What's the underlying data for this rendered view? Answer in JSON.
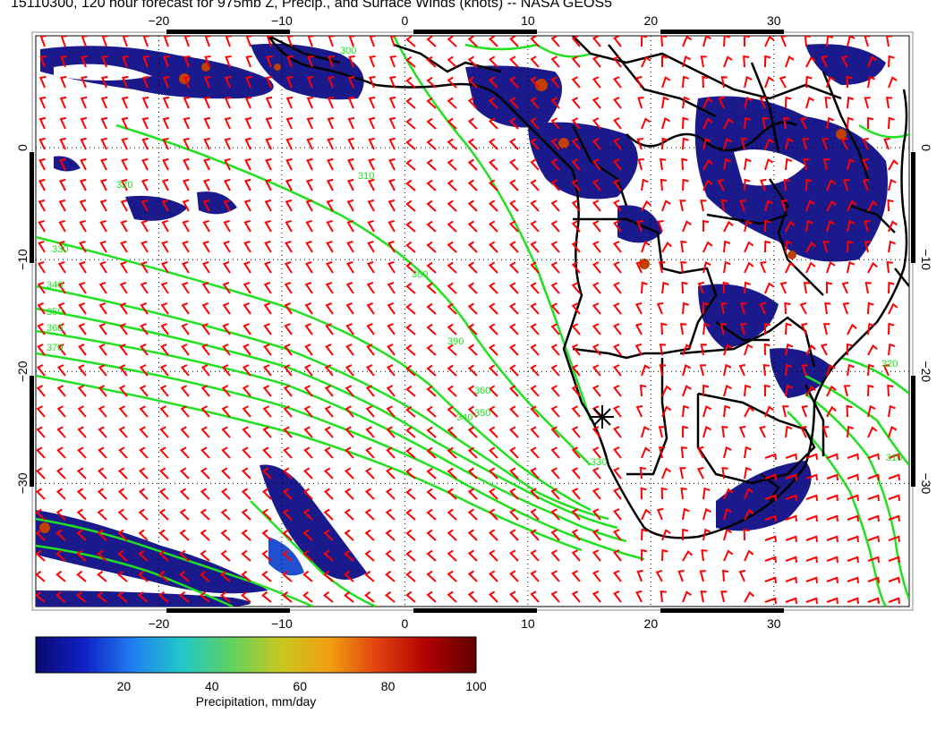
{
  "title": "15110300, 120 hour forecast for 975mb Z, Precip., and Surface Winds (knots) -- NASA GEOS5",
  "map": {
    "lon_range": [
      -30,
      41
    ],
    "lat_range": [
      -41,
      10
    ],
    "lon_ticks": [
      "-20",
      "-10",
      "0",
      "10",
      "20",
      "30"
    ],
    "lat_ticks": [
      "0",
      "-10",
      "-20",
      "-30"
    ],
    "grid": "dotted",
    "marker": "asterisk",
    "contour_labels": [
      "310",
      "320",
      "330",
      "340",
      "350",
      "360",
      "370",
      "380",
      "390",
      "360",
      "350",
      "340",
      "330",
      "320",
      "310",
      "300"
    ]
  },
  "colorbar": {
    "ticks": [
      "20",
      "40",
      "60",
      "80",
      "100"
    ],
    "label": "Precipitation, mm/day",
    "range": [
      0,
      100
    ],
    "colors": [
      "#0a0a6e",
      "#1020c8",
      "#2080f0",
      "#20c8c8",
      "#60d060",
      "#c8c820",
      "#f0a010",
      "#e04010",
      "#b00000",
      "#600000"
    ]
  },
  "colors": {
    "precip_light": "#1a1a8c",
    "precip_mid": "#2050d0",
    "precip_high": "#c04000",
    "wind_barbs": "#ff0000",
    "contours": "#20e020",
    "coast": "#000000",
    "frame": "#888888"
  }
}
